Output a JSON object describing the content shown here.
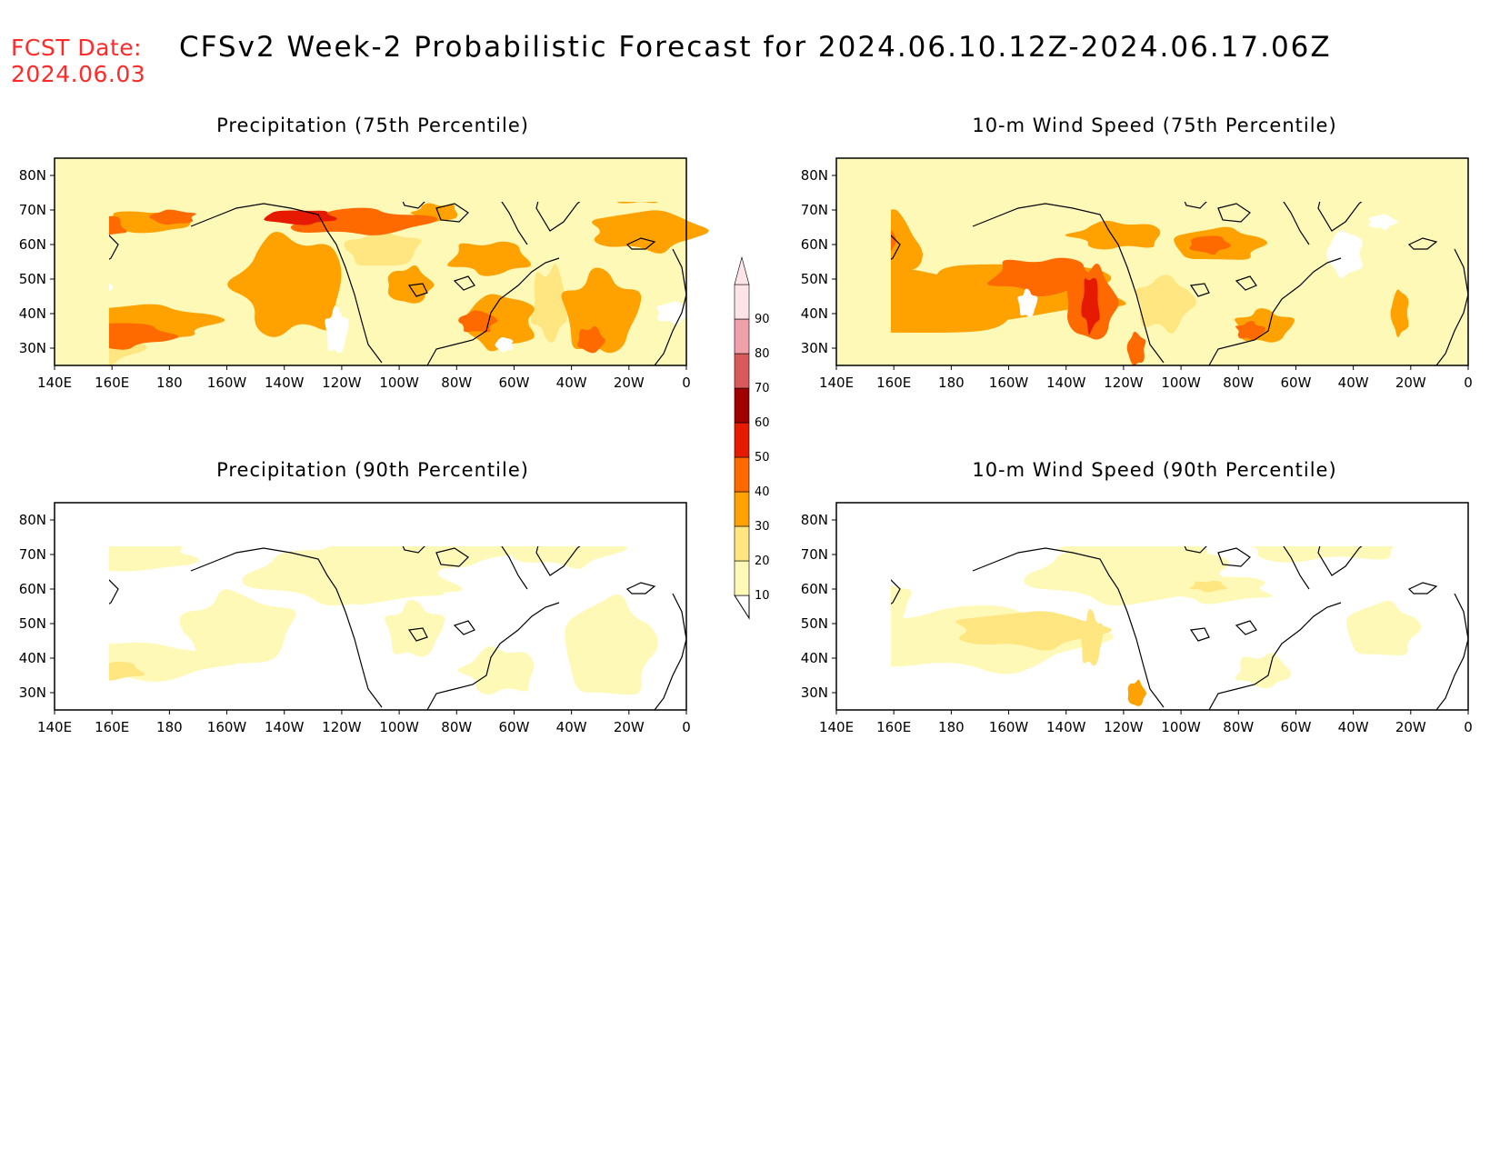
{
  "header": {
    "fcst_label": "FCST Date:",
    "fcst_date": "2024.06.03",
    "title": "CFSv2 Week-2 Probabilistic Forecast for 2024.06.10.12Z-2024.06.17.06Z"
  },
  "colors": {
    "fcst_text": "#ff2a2a",
    "levels": [
      "#fff9b8",
      "#ffe680",
      "#ffa200",
      "#ff6a00",
      "#e61a00",
      "#a00000",
      "#d85a5a",
      "#f0a0a8",
      "#fde4e8"
    ]
  },
  "colorbar": {
    "levels": [
      "10",
      "20",
      "30",
      "40",
      "50",
      "60",
      "70",
      "80",
      "90"
    ]
  },
  "axes": {
    "lon_labels": [
      "140E",
      "160E",
      "180",
      "160W",
      "140W",
      "120W",
      "100W",
      "80W",
      "60W",
      "40W",
      "20W",
      "0"
    ],
    "lat_labels": [
      "80N",
      "70N",
      "60N",
      "50N",
      "40N",
      "30N"
    ]
  },
  "panels": [
    {
      "title": "Precipitation (75th Percentile)"
    },
    {
      "title": "10-m Wind Speed (75th Percentile)"
    },
    {
      "title": "Precipitation (90th Percentile)"
    },
    {
      "title": "10-m Wind Speed (90th Percentile)"
    }
  ]
}
